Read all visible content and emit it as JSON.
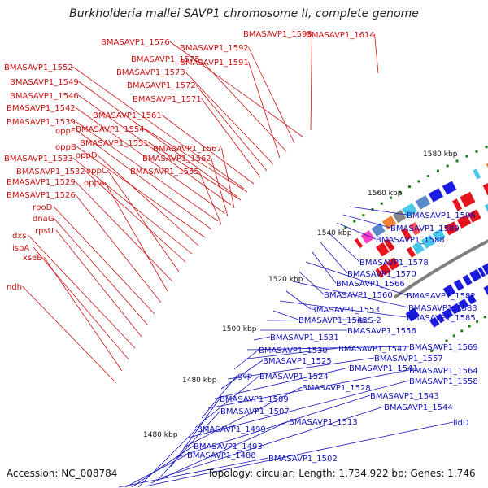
{
  "title": "Burkholderia mallei SAVP1 chromosome II, complete genome",
  "accession": "Accession: NC_008784",
  "summary": "Topology: circular; Length: 1,734,922 bp; Genes: 1,746",
  "colors": {
    "forward": "#e8141c",
    "reverse": "#1a1ae0",
    "backbone": "#808080",
    "scale": "#1a7a1a",
    "label_forward": "#cc1111",
    "label_reverse": "#1111bb"
  },
  "scale_labels": [
    "1480 kbp",
    "1480 kbp",
    "1500 kbp",
    "1520 kbp",
    "1540 kbp",
    "1560 kbp",
    "1580 kbp"
  ],
  "forward_labels": [
    "BMASAVP1_1614",
    "BMASAVP1_1593",
    "BMASAVP1_1576",
    "BMASAVP1_1592",
    "BMASAVP1_1575",
    "BMASAVP1_1591",
    "BMASAVP1_1573",
    "BMASAVP1_1572",
    "BMASAVP1_1571",
    "BMASAVP1_1552",
    "BMASAVP1_1549",
    "BMASAVP1_1546",
    "BMASAVP1_1542",
    "BMASAVP1_1539",
    "BMASAVP1_1561",
    "BMASAVP1_1554",
    "oppF",
    "BMASAVP1_1551",
    "oppB",
    "BMASAVP1_1567",
    "oppD",
    "BMASAVP1_1562",
    "BMASAVP1_1533",
    "BMASAVP1_1532",
    "oppC",
    "BMASAVP1_1555",
    "BMASAVP1_1529",
    "oppA",
    "BMASAVP1_1526",
    "rpoD",
    "dnaG",
    "rpsU",
    "dxs",
    "ispA",
    "xseB",
    "ndh"
  ],
  "reverse_labels": [
    "BMASAVP1_1596",
    "BMASAVP1_1589",
    "BMASAVP1_1588",
    "BMASAVP1_1578",
    "BMASAVP1_1570",
    "BMASAVP1_1566",
    "BMASAVP1_1582",
    "BMASAVP1_1560",
    "BMASAVP1_1583",
    "BMASAVP1_1553",
    "BMASAVP1_1585",
    "BMASAVP1_1545",
    "iscS-2",
    "BMASAVP1_1556",
    "BMASAVP1_1531",
    "BMASAVP1_1569",
    "BMASAVP1_1547",
    "BMASAVP1_1530",
    "BMASAVP1_1557",
    "BMASAVP1_1525",
    "BMASAVP1_1541",
    "BMASAVP1_1564",
    "gcp",
    "BMASAVP1_1524",
    "BMASAVP1_1558",
    "BMASAVP1_1528",
    "BMASAVP1_1543",
    "BMASAVP1_1509",
    "BMASAVP1_1544",
    "BMASAVP1_1507",
    "BMASAVP1_1513",
    "lldD",
    "BMASAVP1_1499",
    "BMASAVP1_1493",
    "BMASAVP1_1488",
    "BMASAVP1_1502"
  ]
}
